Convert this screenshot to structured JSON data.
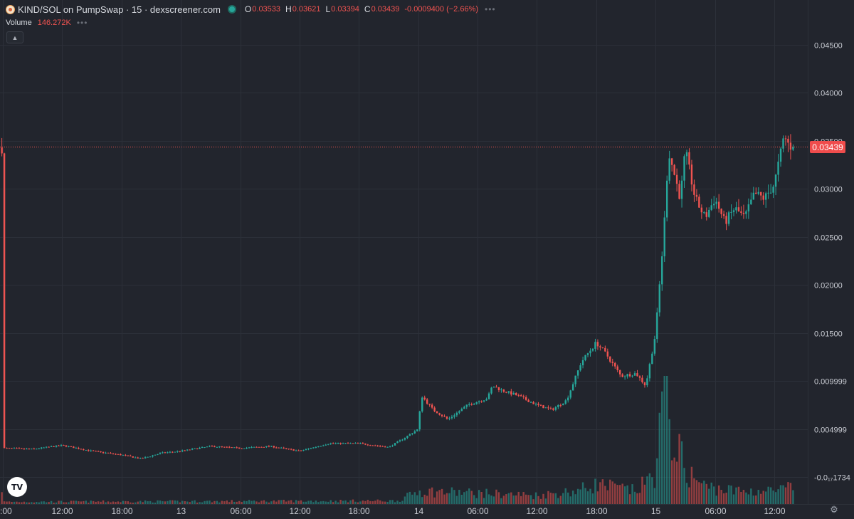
{
  "legend": {
    "title": "KIND/SOL on PumpSwap · 15 · dexscreener.com",
    "open_key": "O",
    "open": "0.03533",
    "high_key": "H",
    "high": "0.03621",
    "low_key": "L",
    "low": "0.03394",
    "close_key": "C",
    "close": "0.03439",
    "change": "-0.0009400 (−2.66%)",
    "more": "•••"
  },
  "volume_legend": {
    "label": "Volume",
    "value": "146.272K",
    "more": "•••"
  },
  "collapse_icon": "chevron-up-icon",
  "last_price_tag": "0.03439",
  "tv_logo_text": "TV",
  "colors": {
    "background": "#22252d",
    "grid": "#2c3039",
    "up": "#26a69a",
    "down": "#ef5350",
    "axis_text": "#c9ccd3",
    "price_line": "#ef5350"
  },
  "chart_data": {
    "type": "candlestick",
    "title": "KIND/SOL on PumpSwap · 15 · dexscreener.com",
    "interval": "15",
    "y_ticks": [
      "0.04500",
      "0.04000",
      "0.03500",
      "0.03000",
      "0.02500",
      "0.02000",
      "0.01500",
      "0.009999",
      "0.004999",
      "-0.0₁₇1734"
    ],
    "y_tick_values": [
      0.045,
      0.04,
      0.035,
      0.03,
      0.025,
      0.02,
      0.015,
      0.01,
      0.005,
      0.0
    ],
    "ylim": [
      -0.0009,
      0.046
    ],
    "x_ticks": [
      ":00",
      "12:00",
      "18:00",
      "13",
      "06:00",
      "12:00",
      "18:00",
      "14",
      "06:00",
      "12:00",
      "18:00",
      "15",
      "06:00",
      "12:00"
    ],
    "x_tick_hours": [
      6,
      12,
      18,
      24,
      30,
      36,
      42,
      48,
      54,
      60,
      66,
      72,
      78,
      84
    ],
    "x_range_hours": [
      6,
      87
    ],
    "last_price": 0.03439,
    "grid": true,
    "anchors": [
      [
        6.0,
        0.003
      ],
      [
        9.0,
        0.0029
      ],
      [
        12.0,
        0.0033
      ],
      [
        15.0,
        0.0027
      ],
      [
        18.0,
        0.0023
      ],
      [
        20.0,
        0.0019
      ],
      [
        22.0,
        0.0025
      ],
      [
        24.0,
        0.0027
      ],
      [
        27.0,
        0.0032
      ],
      [
        30.0,
        0.003
      ],
      [
        33.0,
        0.0032
      ],
      [
        36.0,
        0.0027
      ],
      [
        39.0,
        0.0035
      ],
      [
        42.0,
        0.0035
      ],
      [
        45.0,
        0.0031
      ],
      [
        46.5,
        0.004
      ],
      [
        48.0,
        0.005
      ],
      [
        48.3,
        0.0085
      ],
      [
        49.5,
        0.007
      ],
      [
        51.0,
        0.006
      ],
      [
        53.0,
        0.0075
      ],
      [
        55.0,
        0.0082
      ],
      [
        55.5,
        0.0095
      ],
      [
        56.5,
        0.009
      ],
      [
        58.0,
        0.0085
      ],
      [
        60.0,
        0.0075
      ],
      [
        61.5,
        0.007
      ],
      [
        63.0,
        0.008
      ],
      [
        64.5,
        0.012
      ],
      [
        66.0,
        0.014
      ],
      [
        67.0,
        0.0128
      ],
      [
        68.5,
        0.0105
      ],
      [
        70.0,
        0.0108
      ],
      [
        71.0,
        0.0095
      ],
      [
        72.0,
        0.015
      ],
      [
        72.8,
        0.025
      ],
      [
        73.3,
        0.034
      ],
      [
        74.5,
        0.029
      ],
      [
        75.0,
        0.034
      ],
      [
        76.0,
        0.029
      ],
      [
        77.0,
        0.027
      ],
      [
        78.0,
        0.029
      ],
      [
        79.0,
        0.0265
      ],
      [
        80.0,
        0.028
      ],
      [
        81.0,
        0.027
      ],
      [
        82.0,
        0.0295
      ],
      [
        83.0,
        0.029
      ],
      [
        84.0,
        0.0305
      ],
      [
        85.0,
        0.0355
      ],
      [
        85.5,
        0.0345
      ],
      [
        86.0,
        0.0343
      ]
    ],
    "volume_anchors": [
      [
        6.0,
        0.02
      ],
      [
        46.0,
        0.03
      ],
      [
        48.0,
        0.12
      ],
      [
        54.0,
        0.1
      ],
      [
        60.0,
        0.08
      ],
      [
        64.0,
        0.12
      ],
      [
        66.0,
        0.18
      ],
      [
        70.0,
        0.12
      ],
      [
        72.0,
        0.28
      ],
      [
        72.8,
        1.0
      ],
      [
        73.5,
        0.72
      ],
      [
        75.0,
        0.3
      ],
      [
        77.0,
        0.16
      ],
      [
        80.0,
        0.12
      ],
      [
        84.0,
        0.12
      ],
      [
        86.0,
        0.15
      ]
    ],
    "volume_max_label": "146.272K"
  }
}
